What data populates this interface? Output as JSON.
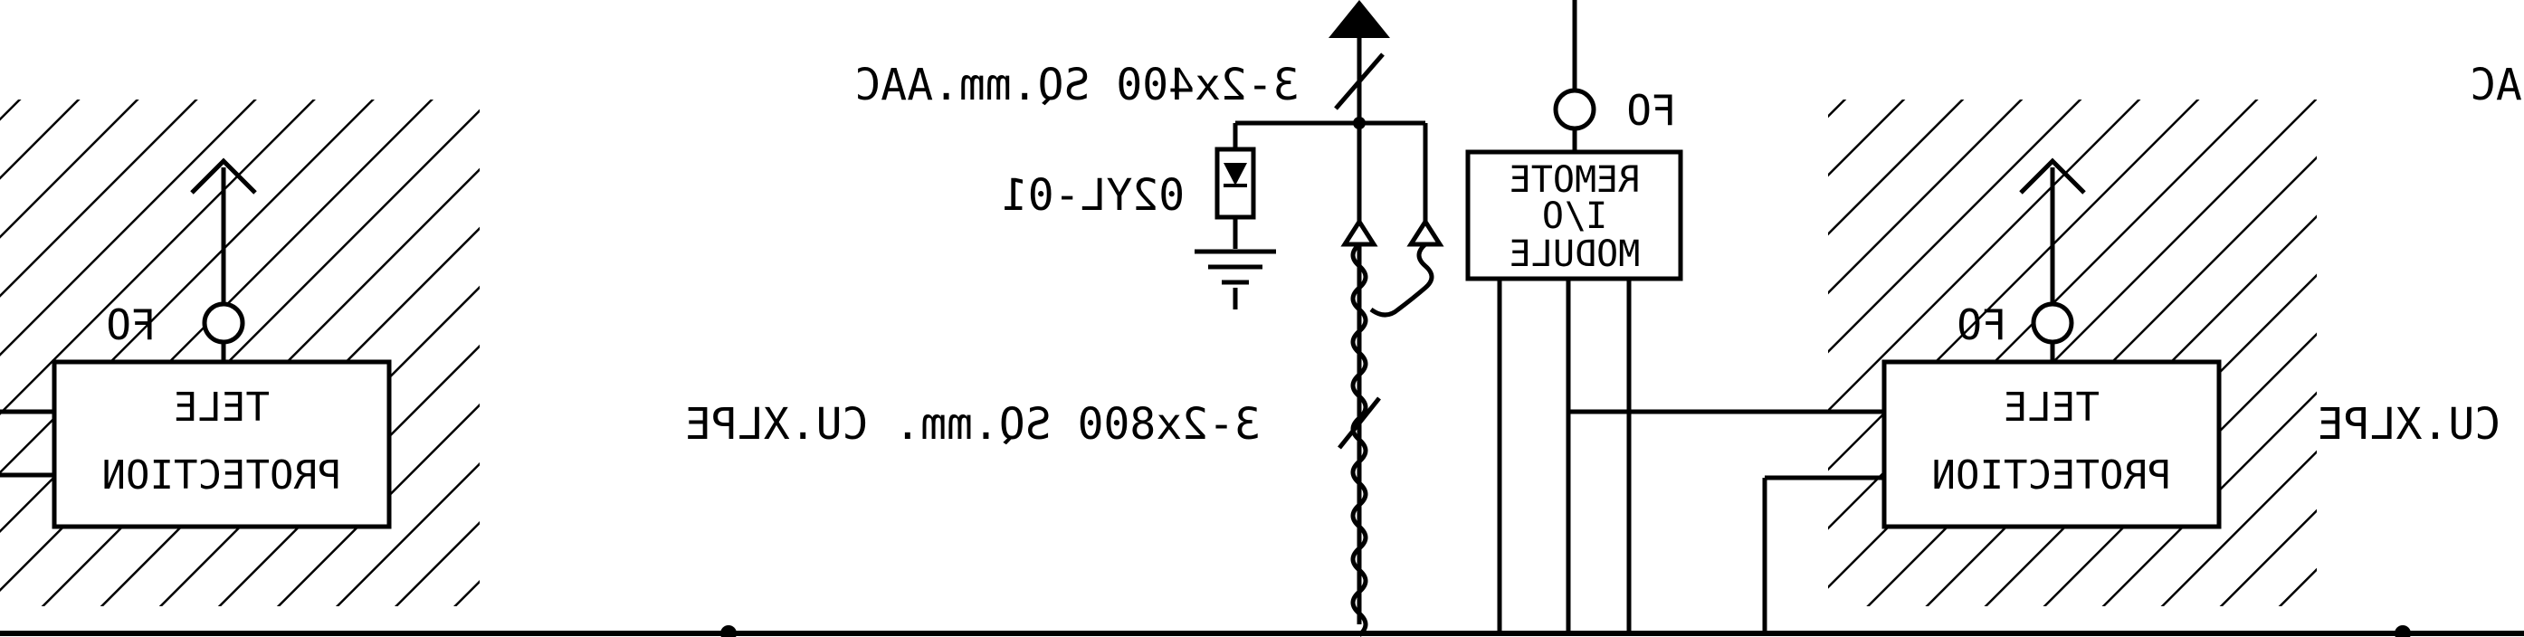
{
  "diagram": {
    "labels": {
      "cable_top_left": "3-2x400 SQ.mm.AAC",
      "cable_top_right": "AC",
      "surge_arrester": "02YL-01",
      "cable_mid_left": "3-2x800 SQ.mm. CU.XLPE",
      "cable_mid_right": "CU.XLPE",
      "fo_left": "FO",
      "fo_center": "FO",
      "fo_right": "FO",
      "tele_left_line1": "TELE",
      "tele_left_line2": "PROTECTION",
      "remote_line1": "REMOTE",
      "remote_line2": "I/O",
      "remote_line3": "MODULE",
      "tele_right_line1": "TELE",
      "tele_right_line2": "PROTECTION"
    }
  }
}
